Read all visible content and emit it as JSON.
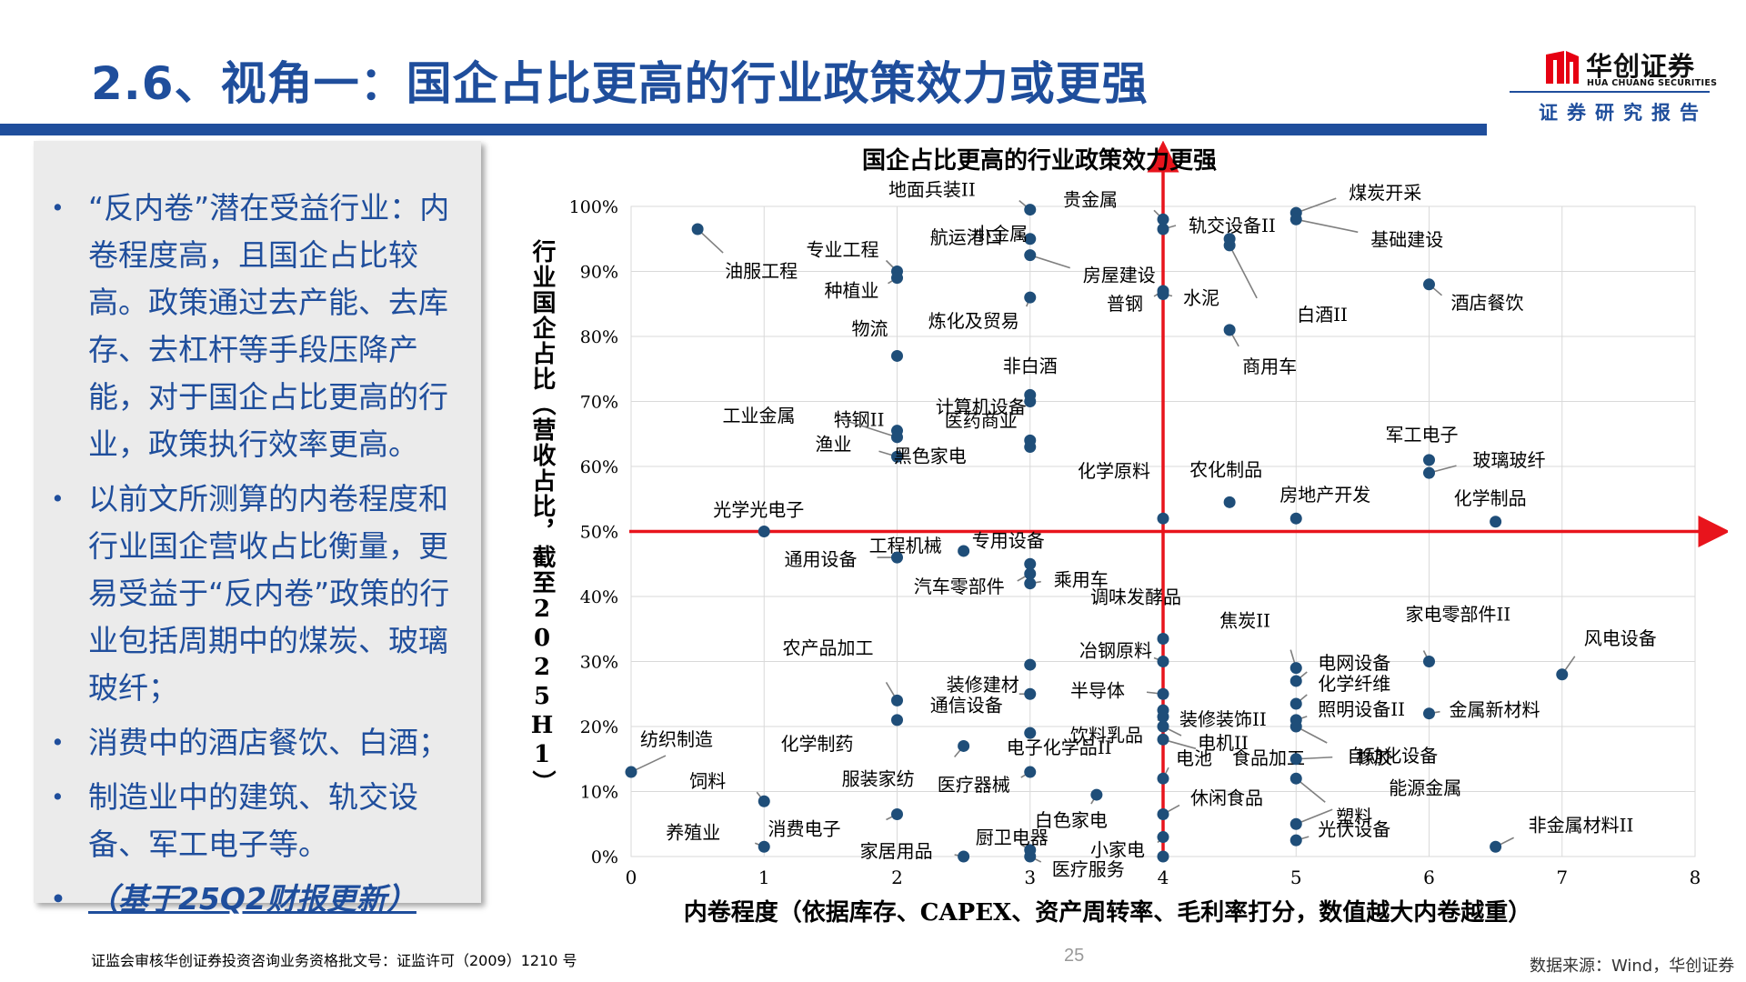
{
  "header": {
    "title": "2.6、视角一：国企占比更高的行业政策效力或更强",
    "logo_name": "华创证券",
    "logo_en": "HUA CHUANG SECURITIES",
    "report_label": "证券研究报告"
  },
  "sidebar": {
    "bullets": [
      "“反内卷”潜在受益行业：内卷程度高，且国企占比较高。政策通过去产能、去库存、去杠杆等手段压降产能，对于国企占比更高的行业，政策执行效率更高。",
      "以前文所测算的内卷程度和行业国企营收占比衡量，更易受益于“反内卷”政策的行业包括周期中的煤炭、玻璃玻纤；",
      "消费中的酒店餐饮、白酒；",
      "制造业中的建筑、轨交设备、军工电子等。",
      "（基于25Q2财报更新）"
    ]
  },
  "chart_data": {
    "type": "scatter",
    "title": "国企占比更高的行业政策效力更强",
    "xlabel": "内卷程度（依据库存、CAPEX、资产周转率、毛利率打分，数值越大内卷越重）",
    "ylabel": "行业国企占比（营收占比，截至2025H1）",
    "xlim": [
      0,
      8
    ],
    "ylim": [
      0,
      100
    ],
    "x_ticks": [
      "0",
      "1",
      "2",
      "3",
      "4",
      "5",
      "6",
      "7",
      "8"
    ],
    "y_ticks": [
      "0%",
      "10%",
      "20%",
      "30%",
      "40%",
      "50%",
      "60%",
      "70%",
      "80%",
      "90%",
      "100%"
    ],
    "reference_lines": {
      "x": 4,
      "y": 50
    },
    "grid": true,
    "colors": {
      "points": "#1f4e79",
      "reference": "#e8141c",
      "leader": "#7f7f7f",
      "grid": "#d9d9d9"
    },
    "points": [
      {
        "label": "地面兵装II",
        "x": 3,
        "y": 99.5
      },
      {
        "label": "贵金属",
        "x": 4,
        "y": 98
      },
      {
        "label": "轨交设备II",
        "x": 4,
        "y": 96.5
      },
      {
        "label": "煤炭开采",
        "x": 5,
        "y": 99
      },
      {
        "label": "基础建设",
        "x": 5,
        "y": 98
      },
      {
        "label": "航运港口",
        "x": 3,
        "y": 95
      },
      {
        "label": "房屋建设",
        "x": 3,
        "y": 92.5
      },
      {
        "label": "油服工程",
        "x": 0.5,
        "y": 96.5
      },
      {
        "label": "专业工程",
        "x": 2,
        "y": 90
      },
      {
        "label": "小金属",
        "x": 4.5,
        "y": 95
      },
      {
        "label": "白酒II",
        "x": 4.5,
        "y": 94
      },
      {
        "label": "种植业",
        "x": 2,
        "y": 89
      },
      {
        "label": "普钢",
        "x": 4,
        "y": 87
      },
      {
        "label": "水泥",
        "x": 4,
        "y": 86.5
      },
      {
        "label": "炼化及贸易",
        "x": 3,
        "y": 86
      },
      {
        "label": "酒店餐饮",
        "x": 6,
        "y": 88
      },
      {
        "label": "商用车",
        "x": 4.5,
        "y": 81
      },
      {
        "label": "物流",
        "x": 2,
        "y": 77
      },
      {
        "label": "特钢II",
        "x": 2,
        "y": 65.5
      },
      {
        "label": "非白酒",
        "x": 3,
        "y": 71
      },
      {
        "label": "计算机设备",
        "x": 3,
        "y": 70
      },
      {
        "label": "工业金属",
        "x": 2,
        "y": 64.5
      },
      {
        "label": "医药商业",
        "x": 3,
        "y": 64
      },
      {
        "label": "渔业",
        "x": 2,
        "y": 61.5
      },
      {
        "label": "黑色家电",
        "x": 3,
        "y": 63
      },
      {
        "label": "化学原料",
        "x": 4,
        "y": 52
      },
      {
        "label": "军工电子",
        "x": 6,
        "y": 61
      },
      {
        "label": "玻璃玻纤",
        "x": 6,
        "y": 59
      },
      {
        "label": "农化制品",
        "x": 4.5,
        "y": 54.5
      },
      {
        "label": "房地产开发",
        "x": 5,
        "y": 52
      },
      {
        "label": "化学制品",
        "x": 6.5,
        "y": 51.5
      },
      {
        "label": "光学光电子",
        "x": 1,
        "y": 50
      },
      {
        "label": "工程机械",
        "x": 2.5,
        "y": 47
      },
      {
        "label": "专用设备",
        "x": 3,
        "y": 45
      },
      {
        "label": "通用设备",
        "x": 2,
        "y": 46
      },
      {
        "label": "汽车零部件",
        "x": 3,
        "y": 43.5
      },
      {
        "label": "乘用车",
        "x": 3,
        "y": 42
      },
      {
        "label": "调味发酵品",
        "x": 4,
        "y": 33.5
      },
      {
        "label": "冶钢原料",
        "x": 4,
        "y": 30
      },
      {
        "label": "农产品加工",
        "x": 2,
        "y": 24
      },
      {
        "label": "装修建材",
        "x": 3,
        "y": 29.5
      },
      {
        "label": "半导体",
        "x": 4,
        "y": 25
      },
      {
        "label": "焦炭II",
        "x": 5,
        "y": 29
      },
      {
        "label": "家电零部件II",
        "x": 6,
        "y": 30
      },
      {
        "label": "风电设备",
        "x": 7,
        "y": 28
      },
      {
        "label": "电网设备",
        "x": 5,
        "y": 27
      },
      {
        "label": "装修装饰II",
        "x": 4,
        "y": 22.5
      },
      {
        "label": "化学纤维",
        "x": 5,
        "y": 23.5
      },
      {
        "label": "通信设备",
        "x": 3,
        "y": 25
      },
      {
        "label": "饮料乳品",
        "x": 4,
        "y": 21.5
      },
      {
        "label": "电机II",
        "x": 4,
        "y": 20
      },
      {
        "label": "照明设备II",
        "x": 5,
        "y": 21
      },
      {
        "label": "金属新材料",
        "x": 6,
        "y": 22
      },
      {
        "label": "化学制药",
        "x": 2,
        "y": 21
      },
      {
        "label": "电子化学品II",
        "x": 3,
        "y": 19
      },
      {
        "label": "食品加工",
        "x": 4,
        "y": 18
      },
      {
        "label": "橡胶",
        "x": 5,
        "y": 20
      },
      {
        "label": "纺织制造",
        "x": 0,
        "y": 13
      },
      {
        "label": "服装家纺",
        "x": 2.5,
        "y": 17
      },
      {
        "label": "医疗器械",
        "x": 3,
        "y": 13
      },
      {
        "label": "电池",
        "x": 4,
        "y": 12
      },
      {
        "label": "自动化设备",
        "x": 5,
        "y": 15
      },
      {
        "label": "饲料",
        "x": 1,
        "y": 8.5
      },
      {
        "label": "休闲食品",
        "x": 4,
        "y": 6.5
      },
      {
        "label": "白色家电",
        "x": 3.5,
        "y": 9.5
      },
      {
        "label": "塑料",
        "x": 5,
        "y": 12
      },
      {
        "label": "能源金属",
        "x": 5,
        "y": 5
      },
      {
        "label": "消费电子",
        "x": 2,
        "y": 6.5
      },
      {
        "label": "厨卫电器",
        "x": 3,
        "y": 1
      },
      {
        "label": "小家电",
        "x": 4,
        "y": 3
      },
      {
        "label": "光伏设备",
        "x": 5,
        "y": 2.5
      },
      {
        "label": "非金属材料II",
        "x": 6.5,
        "y": 1.5
      },
      {
        "label": "养殖业",
        "x": 1,
        "y": 1.5
      },
      {
        "label": "家居用品",
        "x": 2.5,
        "y": 0
      },
      {
        "label": "医疗服务",
        "x": 3,
        "y": 0
      },
      {
        "label": "小家电2",
        "x": 4,
        "y": 0
      }
    ]
  },
  "footer": {
    "license": "证监会审核华创证券投资咨询业务资格批文号：证监许可（2009）1210 号",
    "page": "25",
    "source": "数据来源：Wind，华创证券"
  }
}
